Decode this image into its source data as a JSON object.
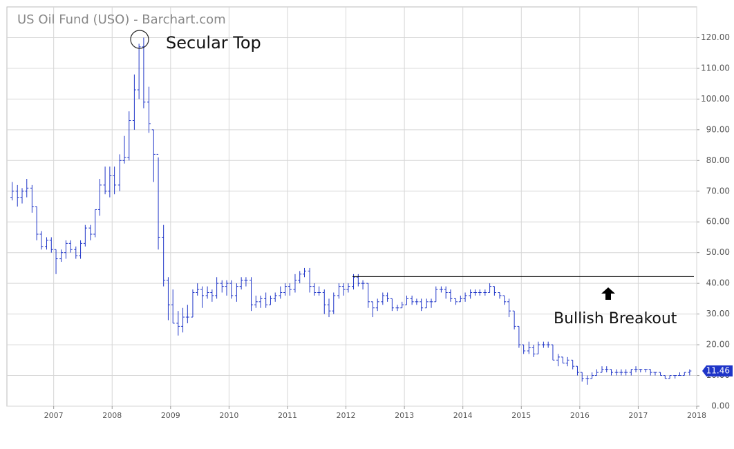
{
  "chart_data": {
    "type": "ohlc",
    "title": "US Oil Fund (USO) - Barchart.com",
    "annotations": [
      "Secular Top",
      "Bullish Breakout"
    ],
    "resistance_level": 42.2,
    "color": "#1f35c8",
    "grid": true,
    "xlim": [
      2006.2,
      2018.0
    ],
    "xticks": [
      2007,
      2008,
      2009,
      2010,
      2011,
      2012,
      2013,
      2014,
      2015,
      2016,
      2017,
      2018
    ],
    "ylim": [
      0,
      130
    ],
    "yticks": [
      {
        "value": 0,
        "label": "0.00"
      },
      {
        "value": 10,
        "label": "10.00"
      },
      {
        "value": 20,
        "label": "20.00"
      },
      {
        "value": 30,
        "label": "30.00"
      },
      {
        "value": 40,
        "label": "40.00"
      },
      {
        "value": 50,
        "label": "50.00"
      },
      {
        "value": 60,
        "label": "60.00"
      },
      {
        "value": 70,
        "label": "70.00"
      },
      {
        "value": 80,
        "label": "80.00"
      },
      {
        "value": 90,
        "label": "90.00"
      },
      {
        "value": 100,
        "label": "100.00"
      },
      {
        "value": 110,
        "label": "110.00"
      },
      {
        "value": 120,
        "label": "120.00"
      }
    ],
    "x": [
      2006.29,
      2006.38,
      2006.46,
      2006.54,
      2006.63,
      2006.71,
      2006.79,
      2006.88,
      2006.96,
      2007.04,
      2007.13,
      2007.21,
      2007.29,
      2007.38,
      2007.46,
      2007.54,
      2007.63,
      2007.71,
      2007.79,
      2007.88,
      2007.96,
      2008.04,
      2008.13,
      2008.21,
      2008.29,
      2008.38,
      2008.46,
      2008.54,
      2008.63,
      2008.71,
      2008.79,
      2008.88,
      2008.96,
      2009.04,
      2009.13,
      2009.21,
      2009.29,
      2009.38,
      2009.46,
      2009.54,
      2009.63,
      2009.71,
      2009.79,
      2009.88,
      2009.96,
      2010.04,
      2010.13,
      2010.21,
      2010.29,
      2010.38,
      2010.46,
      2010.54,
      2010.63,
      2010.71,
      2010.79,
      2010.88,
      2010.96,
      2011.04,
      2011.13,
      2011.21,
      2011.29,
      2011.38,
      2011.46,
      2011.54,
      2011.63,
      2011.71,
      2011.79,
      2011.88,
      2011.96,
      2012.04,
      2012.13,
      2012.21,
      2012.29,
      2012.38,
      2012.46,
      2012.54,
      2012.63,
      2012.71,
      2012.79,
      2012.88,
      2012.96,
      2013.04,
      2013.13,
      2013.21,
      2013.29,
      2013.38,
      2013.46,
      2013.54,
      2013.63,
      2013.71,
      2013.79,
      2013.88,
      2013.96,
      2014.04,
      2014.13,
      2014.21,
      2014.29,
      2014.38,
      2014.46,
      2014.54,
      2014.63,
      2014.71,
      2014.79,
      2014.88,
      2014.96,
      2015.04,
      2015.13,
      2015.21,
      2015.29,
      2015.38,
      2015.46,
      2015.54,
      2015.63,
      2015.71,
      2015.79,
      2015.88,
      2015.96,
      2016.04,
      2016.13,
      2016.21,
      2016.29,
      2016.38,
      2016.46,
      2016.54,
      2016.63,
      2016.71,
      2016.79,
      2016.88,
      2016.96,
      2017.04,
      2017.13,
      2017.21,
      2017.29,
      2017.38,
      2017.46,
      2017.54,
      2017.63,
      2017.71,
      2017.79,
      2017.88
    ],
    "open": [
      68,
      70,
      68,
      70,
      71,
      65,
      56,
      52,
      54,
      51,
      48,
      50,
      53,
      51,
      49,
      53,
      58,
      56,
      64,
      72,
      70,
      75,
      72,
      80,
      81,
      93,
      103,
      117,
      99,
      90,
      82,
      55,
      41,
      33,
      27,
      26,
      29,
      29,
      37,
      38,
      36,
      37,
      36,
      40,
      39,
      40,
      36,
      39,
      41,
      41,
      33,
      34,
      35,
      33,
      35,
      36,
      37,
      39,
      38,
      41,
      43,
      44,
      39,
      37,
      37,
      33,
      31,
      36,
      39,
      38,
      39,
      42,
      40,
      40,
      34,
      32,
      34,
      36,
      35,
      32,
      32,
      33,
      35,
      34,
      34,
      32,
      34,
      34,
      38,
      38,
      37,
      35,
      34,
      35,
      36,
      37,
      37,
      37,
      37,
      39,
      37,
      36,
      34,
      31,
      26,
      20,
      18,
      19,
      17,
      20,
      20,
      20,
      15,
      16,
      14,
      15,
      13,
      11,
      9,
      9,
      10,
      11,
      12,
      12,
      11,
      11,
      11,
      11,
      12,
      12,
      12,
      12,
      11,
      11,
      10,
      9,
      10,
      10,
      10,
      11
    ],
    "high": [
      73,
      72,
      71,
      74,
      72,
      65,
      57,
      55,
      55,
      51,
      51,
      54,
      54,
      52,
      54,
      59,
      59,
      64,
      74,
      78,
      78,
      78,
      82,
      88,
      96,
      108,
      118,
      120,
      104,
      90,
      81,
      59,
      42,
      38,
      31,
      32,
      33,
      38,
      40,
      39,
      39,
      38,
      42,
      41,
      41,
      41,
      40,
      42,
      42,
      42,
      36,
      36,
      37,
      36,
      37,
      39,
      40,
      40,
      43,
      44,
      45,
      45,
      40,
      39,
      38,
      35,
      37,
      40,
      40,
      40,
      43,
      43,
      41,
      40,
      34,
      35,
      37,
      37,
      35,
      33,
      34,
      36,
      36,
      35,
      35,
      35,
      35,
      39,
      39,
      39,
      38,
      35,
      36,
      37,
      38,
      38,
      38,
      38,
      40,
      39,
      37,
      36,
      35,
      31,
      26,
      20,
      21,
      20,
      21,
      21,
      21,
      20,
      17,
      16,
      16,
      15,
      13,
      11,
      10,
      11,
      12,
      13,
      13,
      12,
      12,
      12,
      12,
      12,
      13,
      12,
      12,
      12,
      11,
      11,
      10,
      10,
      10,
      11,
      11,
      12
    ],
    "low": [
      67,
      65,
      66,
      68,
      63,
      54,
      51,
      51,
      50,
      43,
      47,
      48,
      50,
      48,
      48,
      52,
      54,
      55,
      62,
      69,
      68,
      69,
      70,
      79,
      80,
      90,
      100,
      97,
      89,
      73,
      51,
      39,
      28,
      27,
      23,
      24,
      27,
      29,
      36,
      32,
      35,
      34,
      35,
      37,
      36,
      35,
      34,
      38,
      39,
      31,
      32,
      32,
      32,
      33,
      34,
      35,
      36,
      36,
      37,
      40,
      42,
      37,
      36,
      36,
      30,
      29,
      30,
      35,
      36,
      37,
      38,
      39,
      38,
      32,
      29,
      31,
      33,
      34,
      31,
      31,
      32,
      33,
      33,
      33,
      31,
      32,
      32,
      34,
      37,
      35,
      34,
      33,
      34,
      34,
      35,
      36,
      36,
      36,
      37,
      36,
      35,
      33,
      29,
      25,
      19,
      17,
      17,
      16,
      17,
      19,
      19,
      15,
      13,
      14,
      13,
      12,
      10,
      8,
      7,
      9,
      10,
      11,
      11,
      10,
      10,
      10,
      10,
      10,
      11,
      11,
      11,
      10,
      10,
      10,
      9,
      9,
      9,
      10,
      10,
      10
    ],
    "close": [
      70,
      68,
      70,
      71,
      65,
      56,
      52,
      54,
      51,
      48,
      50,
      53,
      51,
      49,
      53,
      58,
      56,
      64,
      72,
      70,
      75,
      72,
      80,
      81,
      93,
      103,
      117,
      99,
      92,
      82,
      55,
      41,
      33,
      27,
      26,
      29,
      29,
      37,
      38,
      36,
      37,
      36,
      40,
      39,
      40,
      36,
      39,
      41,
      41,
      33,
      34,
      35,
      33,
      35,
      36,
      37,
      39,
      38,
      41,
      43,
      44,
      39,
      37,
      37,
      33,
      31,
      36,
      39,
      38,
      39,
      42,
      40,
      40,
      34,
      32,
      34,
      36,
      35,
      32,
      32,
      33,
      35,
      34,
      34,
      32,
      34,
      34,
      38,
      38,
      37,
      35,
      34,
      35,
      36,
      37,
      37,
      37,
      37,
      39,
      37,
      36,
      34,
      31,
      26,
      20,
      18,
      19,
      17,
      20,
      20,
      20,
      15,
      16,
      14,
      15,
      13,
      11,
      9,
      9,
      10,
      11,
      12,
      12,
      11,
      11,
      11,
      11,
      12,
      12,
      12,
      12,
      11,
      11,
      10,
      9,
      10,
      10,
      10,
      11,
      11.46
    ]
  }
}
